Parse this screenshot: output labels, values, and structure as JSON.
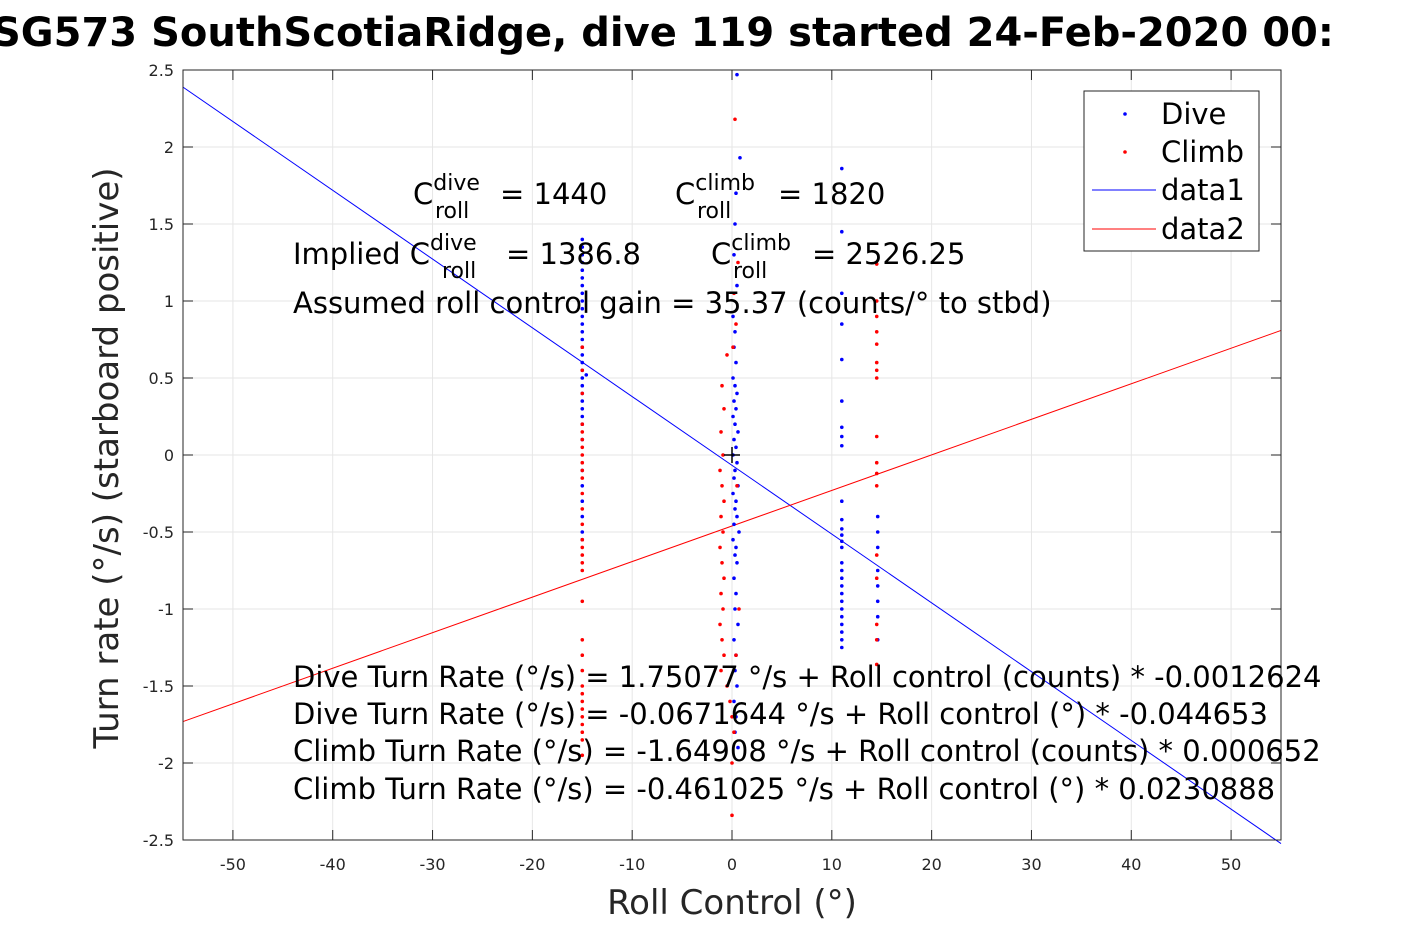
{
  "chart_data": {
    "type": "scatter",
    "title": "SG573 SouthScotiaRidge, dive 119 started 24-Feb-2020 00:",
    "xlabel": "Roll Control (°)",
    "ylabel": "Turn rate (°/s) (starboard positive)",
    "xlim": [
      -55,
      55
    ],
    "ylim": [
      -2.5,
      2.5
    ],
    "xticks": [
      -50,
      -40,
      -30,
      -20,
      -10,
      0,
      10,
      20,
      30,
      40,
      50
    ],
    "yticks": [
      -2.5,
      -2,
      -1.5,
      -1,
      -0.5,
      0,
      0.5,
      1,
      1.5,
      2,
      2.5
    ],
    "xtick_labels": [
      "-50",
      "-40",
      "-30",
      "-20",
      "-10",
      "0",
      "10",
      "20",
      "30",
      "40",
      "50"
    ],
    "ytick_labels": [
      "-2.5",
      "-2",
      "-1.5",
      "-1",
      "-0.5",
      "0",
      "0.5",
      "1",
      "1.5",
      "2",
      "2.5"
    ],
    "grid": true,
    "legend_position": "top-right",
    "colors": {
      "dive": "#0000ff",
      "climb": "#ff0000",
      "axes": "#262626",
      "grid": "#e6e6e6"
    },
    "series": [
      {
        "name": "Dive",
        "kind": "scatter",
        "color": "#0000ff",
        "points": [
          [
            -15,
            1.4
          ],
          [
            -15,
            1.35
          ],
          [
            -15,
            1.3
          ],
          [
            -15,
            1.25
          ],
          [
            -15,
            1.2
          ],
          [
            -15,
            1.15
          ],
          [
            -15,
            1.1
          ],
          [
            -15,
            1.05
          ],
          [
            -15,
            1.0
          ],
          [
            -15,
            0.95
          ],
          [
            -15,
            0.9
          ],
          [
            -15,
            0.85
          ],
          [
            -15,
            0.8
          ],
          [
            -15,
            0.75
          ],
          [
            -15,
            0.7
          ],
          [
            -15,
            0.65
          ],
          [
            -15,
            0.6
          ],
          [
            -15,
            0.55
          ],
          [
            -15,
            0.5
          ],
          [
            -15,
            0.45
          ],
          [
            -15,
            0.4
          ],
          [
            -15,
            0.35
          ],
          [
            -15,
            0.3
          ],
          [
            -15,
            0.25
          ],
          [
            -15,
            0.2
          ],
          [
            -15,
            0.1
          ],
          [
            -15,
            -0.1
          ],
          [
            -15,
            -0.2
          ],
          [
            -15,
            -0.3
          ],
          [
            -15,
            -0.4
          ],
          [
            -15,
            -0.5
          ],
          [
            -15,
            -0.55
          ],
          [
            -14.6,
            0.52
          ],
          [
            0.5,
            2.47
          ],
          [
            0.8,
            1.93
          ],
          [
            0.4,
            1.7
          ],
          [
            0.3,
            1.5
          ],
          [
            0.2,
            1.3
          ],
          [
            0.5,
            1.1
          ],
          [
            0.1,
            0.9
          ],
          [
            0.3,
            0.8
          ],
          [
            0.2,
            0.7
          ],
          [
            0.4,
            0.6
          ],
          [
            0.1,
            0.5
          ],
          [
            0.3,
            0.45
          ],
          [
            0.5,
            0.4
          ],
          [
            0.2,
            0.35
          ],
          [
            0.4,
            0.3
          ],
          [
            0.1,
            0.25
          ],
          [
            0.3,
            0.2
          ],
          [
            0.6,
            0.15
          ],
          [
            0.2,
            0.1
          ],
          [
            0.4,
            0.05
          ],
          [
            0.1,
            0.0
          ],
          [
            0.5,
            -0.05
          ],
          [
            0.3,
            -0.1
          ],
          [
            0.2,
            -0.15
          ],
          [
            0.6,
            -0.2
          ],
          [
            0.1,
            -0.25
          ],
          [
            0.4,
            -0.3
          ],
          [
            0.3,
            -0.35
          ],
          [
            0.5,
            -0.4
          ],
          [
            0.2,
            -0.45
          ],
          [
            0.7,
            -0.5
          ],
          [
            0.1,
            -0.55
          ],
          [
            0.4,
            -0.6
          ],
          [
            0.3,
            -0.65
          ],
          [
            0.5,
            -0.7
          ],
          [
            0.2,
            -0.8
          ],
          [
            0.4,
            -0.9
          ],
          [
            0.3,
            -1.0
          ],
          [
            0.6,
            -1.1
          ],
          [
            0.2,
            -1.2
          ],
          [
            0.4,
            -1.3
          ],
          [
            0.3,
            -1.4
          ],
          [
            0.5,
            -1.5
          ],
          [
            0.2,
            -1.6
          ],
          [
            0.4,
            -1.7
          ],
          [
            0.3,
            -1.8
          ],
          [
            0.6,
            -1.9
          ],
          [
            11,
            1.86
          ],
          [
            11,
            1.45
          ],
          [
            11,
            1.05
          ],
          [
            11,
            0.85
          ],
          [
            11,
            0.62
          ],
          [
            11,
            0.35
          ],
          [
            11,
            0.18
          ],
          [
            11,
            0.12
          ],
          [
            11,
            0.06
          ],
          [
            11,
            -0.3
          ],
          [
            11,
            -0.42
          ],
          [
            11,
            -0.48
          ],
          [
            11,
            -0.52
          ],
          [
            11,
            -0.56
          ],
          [
            11,
            -0.6
          ],
          [
            11,
            -0.7
          ],
          [
            11,
            -0.75
          ],
          [
            11,
            -0.8
          ],
          [
            11,
            -0.85
          ],
          [
            11,
            -0.9
          ],
          [
            11,
            -0.95
          ],
          [
            11,
            -1.0
          ],
          [
            11,
            -1.05
          ],
          [
            11,
            -1.1
          ],
          [
            11,
            -1.15
          ],
          [
            11,
            -1.2
          ],
          [
            11,
            -1.25
          ],
          [
            14.6,
            -0.4
          ],
          [
            14.6,
            -0.5
          ],
          [
            14.6,
            -0.6
          ],
          [
            14.6,
            -0.75
          ],
          [
            14.6,
            -0.85
          ],
          [
            14.6,
            -0.95
          ],
          [
            14.6,
            -1.05
          ],
          [
            14.6,
            -1.2
          ]
        ]
      },
      {
        "name": "Climb",
        "kind": "scatter",
        "color": "#ff0000",
        "points": [
          [
            -15,
            0.7
          ],
          [
            -15,
            0.55
          ],
          [
            -15,
            0.4
          ],
          [
            -15,
            0.2
          ],
          [
            -15,
            0.15
          ],
          [
            -15,
            0.1
          ],
          [
            -15,
            0.05
          ],
          [
            -15,
            0.0
          ],
          [
            -15,
            -0.05
          ],
          [
            -15,
            -0.1
          ],
          [
            -15,
            -0.15
          ],
          [
            -15,
            -0.25
          ],
          [
            -15,
            -0.35
          ],
          [
            -15,
            -0.45
          ],
          [
            -15,
            -0.55
          ],
          [
            -15,
            -0.6
          ],
          [
            -15,
            -0.65
          ],
          [
            -15,
            -0.7
          ],
          [
            -15,
            -0.75
          ],
          [
            -15,
            -0.95
          ],
          [
            -15,
            -1.2
          ],
          [
            -15,
            -1.3
          ],
          [
            -15,
            -1.4
          ],
          [
            -15,
            -1.5
          ],
          [
            -15,
            -1.55
          ],
          [
            -15,
            -1.6
          ],
          [
            -15,
            -1.65
          ],
          [
            -15,
            -1.7
          ],
          [
            -15,
            -1.75
          ],
          [
            -15,
            -1.8
          ],
          [
            -15,
            -1.85
          ],
          [
            -15,
            -1.95
          ],
          [
            0.3,
            2.18
          ],
          [
            0.6,
            1.25
          ],
          [
            0.2,
            1.05
          ],
          [
            0.4,
            0.85
          ],
          [
            0.1,
            0.7
          ],
          [
            -0.5,
            0.65
          ],
          [
            -1.0,
            0.45
          ],
          [
            -0.8,
            0.3
          ],
          [
            -1.1,
            0.15
          ],
          [
            -0.9,
            0.0
          ],
          [
            -1.2,
            -0.1
          ],
          [
            -1.0,
            -0.2
          ],
          [
            -0.8,
            -0.3
          ],
          [
            -1.1,
            -0.4
          ],
          [
            -0.9,
            -0.5
          ],
          [
            -1.2,
            -0.6
          ],
          [
            -1.0,
            -0.7
          ],
          [
            -0.8,
            -0.8
          ],
          [
            -1.1,
            -0.9
          ],
          [
            -0.9,
            -1.0
          ],
          [
            -1.2,
            -1.1
          ],
          [
            -1.0,
            -1.2
          ],
          [
            -0.8,
            -1.3
          ],
          [
            -1.1,
            -1.4
          ],
          [
            -0.5,
            -1.5
          ],
          [
            -0.2,
            -1.6
          ],
          [
            0.0,
            -1.7
          ],
          [
            0.2,
            -1.8
          ],
          [
            0.0,
            -2.0
          ],
          [
            0.0,
            -2.34
          ],
          [
            0.5,
            -0.2
          ],
          [
            0.7,
            -1.0
          ],
          [
            0.4,
            -1.3
          ],
          [
            14.5,
            1.24
          ],
          [
            14.5,
            1.0
          ],
          [
            14.5,
            0.9
          ],
          [
            14.5,
            0.8
          ],
          [
            14.5,
            0.72
          ],
          [
            14.5,
            0.6
          ],
          [
            14.5,
            0.55
          ],
          [
            14.5,
            0.5
          ],
          [
            14.5,
            0.12
          ],
          [
            14.5,
            -0.05
          ],
          [
            14.5,
            -0.12
          ],
          [
            14.5,
            -0.2
          ],
          [
            14.5,
            -0.65
          ],
          [
            14.5,
            -0.8
          ],
          [
            14.5,
            -1.1
          ],
          [
            14.5,
            -1.2
          ],
          [
            14.5,
            -1.36
          ]
        ]
      },
      {
        "name": "data1",
        "kind": "line",
        "color": "#0000ff",
        "intercept": -0.0671644,
        "slope": -0.044653
      },
      {
        "name": "data2",
        "kind": "line",
        "color": "#ff0000",
        "intercept": -0.461025,
        "slope": 0.0230888
      }
    ],
    "annotations": {
      "c_dive_base": "C",
      "c_dive_sup": "dive",
      "c_dive_sub": "roll",
      "c_dive_value": "= 1440",
      "c_climb_base": "C",
      "c_climb_sup": "climb",
      "c_climb_sub": "roll",
      "c_climb_value": "= 1820",
      "implied_prefix": "Implied C",
      "implied_dive_sup": "dive",
      "implied_dive_sub": "roll",
      "implied_dive_value": "= 1386.8",
      "implied_climb_base": "C",
      "implied_climb_sup": "climb",
      "implied_climb_sub": "roll",
      "implied_climb_value": "= 2526.25",
      "gain": "Assumed roll control gain = 35.37 (counts/° to stbd)",
      "eq1": "Dive Turn Rate (°/s) = 1.75077 °/s + Roll control (counts) * -0.0012624",
      "eq2": "Dive Turn Rate (°/s) = -0.0671644 °/s + Roll control (°) * -0.044653",
      "eq3": "Climb Turn Rate (°/s) = -1.64908 °/s + Roll control (counts) * 0.000652",
      "eq4": "Climb Turn Rate (°/s) = -0.461025 °/s + Roll control (°) * 0.0230888"
    },
    "marker": {
      "symbol": "+",
      "x": 0,
      "y": 0
    }
  }
}
